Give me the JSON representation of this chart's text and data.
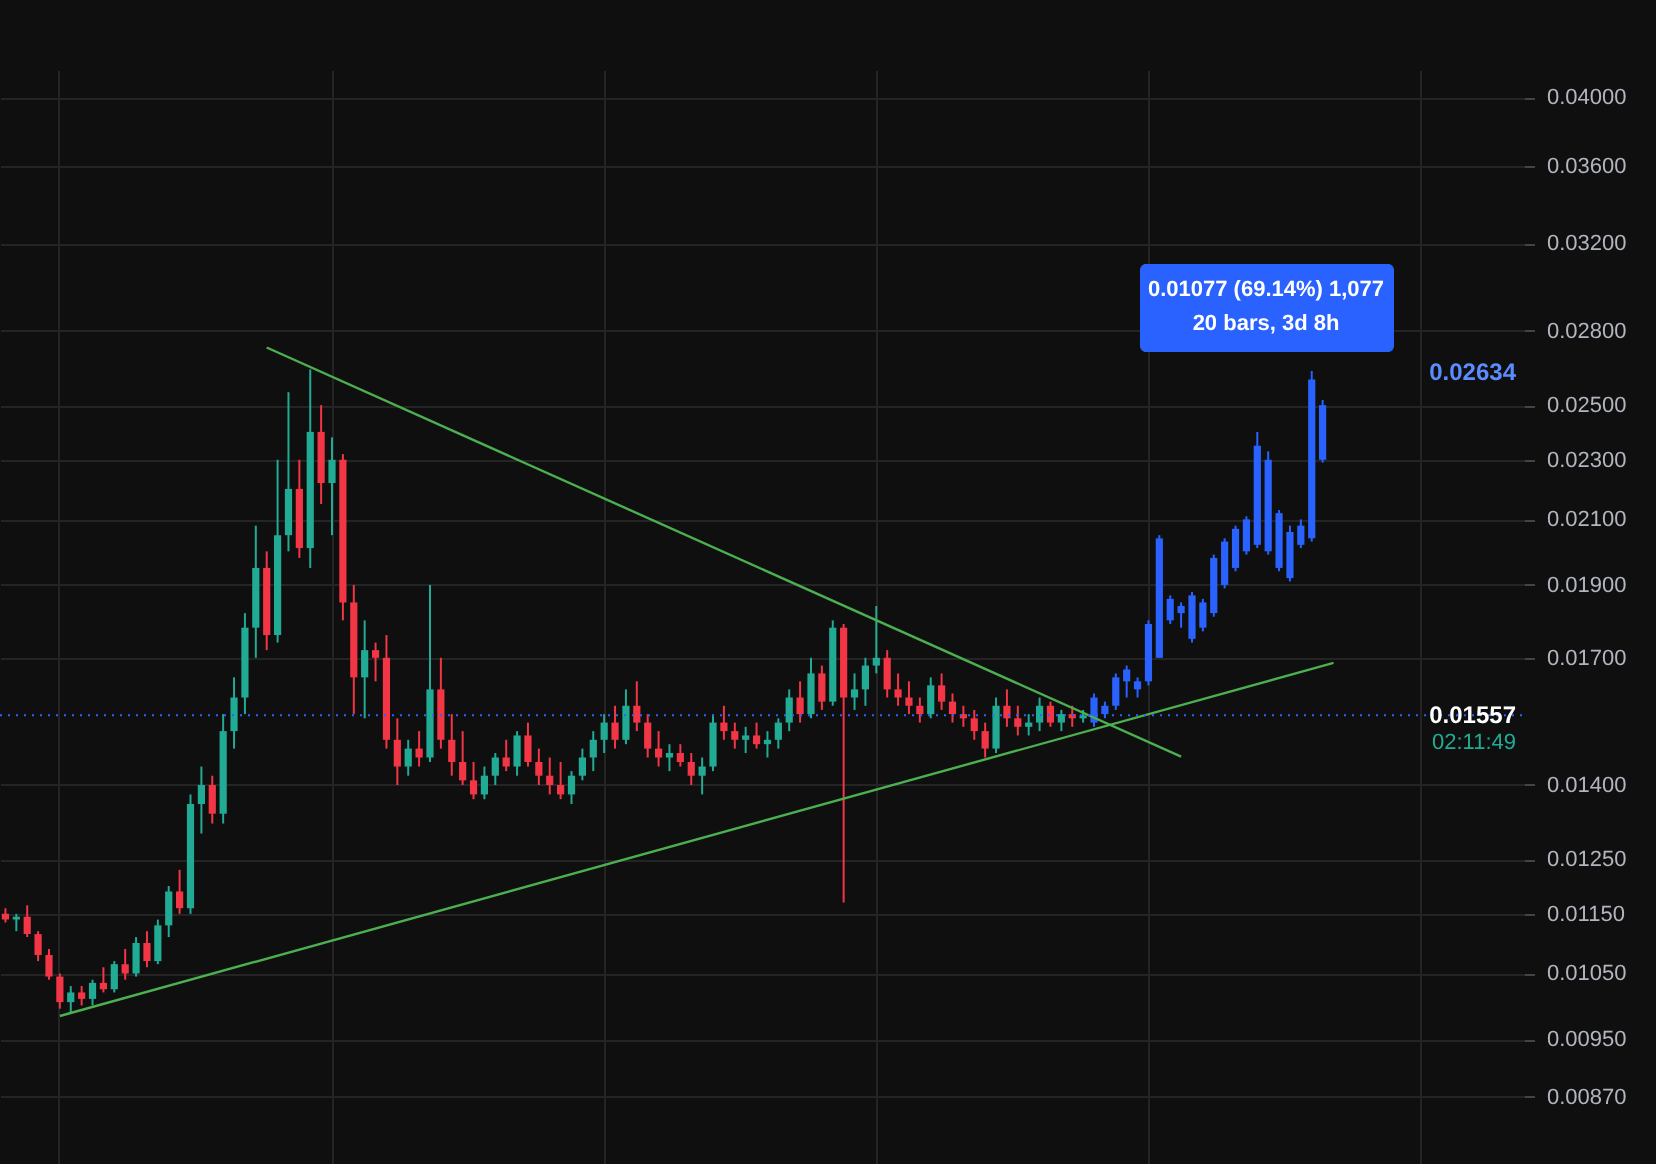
{
  "chart_data": {
    "type": "candlestick",
    "categories": [
      null,
      null,
      null,
      null,
      null,
      null,
      null,
      null,
      null,
      null,
      null,
      null,
      null,
      null,
      null,
      null,
      null,
      null,
      null,
      null,
      null,
      null,
      null,
      null,
      null,
      null,
      null,
      null,
      null,
      null,
      null,
      null,
      null,
      null,
      null,
      null,
      null,
      null,
      null,
      null,
      null,
      null,
      null,
      null,
      null,
      null,
      null,
      null,
      null,
      null,
      null,
      null,
      null,
      null,
      null,
      null,
      null,
      null,
      null,
      null,
      null,
      null,
      null,
      null,
      null,
      null,
      null,
      null,
      null,
      null,
      null,
      null,
      null,
      null,
      null,
      null,
      null,
      null,
      null,
      null,
      null,
      null,
      null,
      null,
      null,
      null,
      null,
      null,
      null,
      null,
      null,
      null,
      null,
      null,
      null,
      null,
      null,
      null,
      null,
      null,
      null,
      null,
      null,
      null,
      null,
      null,
      null,
      null,
      null,
      null,
      null,
      null,
      null,
      null,
      null,
      null,
      null,
      null,
      null,
      null,
      null,
      null,
      null,
      null,
      null,
      null,
      null,
      null,
      null,
      null,
      null,
      null,
      null,
      null,
      null,
      null,
      null,
      null,
      null,
      null
    ],
    "series": [
      {
        "type": "candlestick",
        "ohlc": [
          [
            0.0115,
            0.0116,
            0.01135,
            0.0114
          ],
          [
            0.0114,
            0.0115,
            0.0112,
            0.01145
          ],
          [
            0.01145,
            0.01165,
            0.0111,
            0.01115
          ],
          [
            0.01115,
            0.0112,
            0.0107,
            0.0108
          ],
          [
            0.0108,
            0.0109,
            0.0104,
            0.01045
          ],
          [
            0.01045,
            0.0105,
            0.00995,
            0.01005
          ],
          [
            0.01005,
            0.0103,
            0.0099,
            0.0102
          ],
          [
            0.0102,
            0.0103,
            0.01,
            0.0101
          ],
          [
            0.0101,
            0.0104,
            0.01,
            0.01035
          ],
          [
            0.01035,
            0.0106,
            0.0102,
            0.01025
          ],
          [
            0.01025,
            0.0107,
            0.0102,
            0.01065
          ],
          [
            0.01065,
            0.0109,
            0.0104,
            0.0105
          ],
          [
            0.0105,
            0.0111,
            0.01045,
            0.011
          ],
          [
            0.011,
            0.0112,
            0.0106,
            0.0107
          ],
          [
            0.0107,
            0.0114,
            0.01065,
            0.0113
          ],
          [
            0.0113,
            0.012,
            0.0111,
            0.0119
          ],
          [
            0.0119,
            0.0123,
            0.0115,
            0.0116
          ],
          [
            0.0116,
            0.0138,
            0.0115,
            0.0136
          ],
          [
            0.0136,
            0.0144,
            0.013,
            0.014
          ],
          [
            0.014,
            0.0142,
            0.0132,
            0.0134
          ],
          [
            0.0134,
            0.0156,
            0.0132,
            0.0152
          ],
          [
            0.0152,
            0.0165,
            0.0148,
            0.016
          ],
          [
            0.016,
            0.0182,
            0.0156,
            0.0178
          ],
          [
            0.0178,
            0.0208,
            0.017,
            0.0195
          ],
          [
            0.0195,
            0.02,
            0.0172,
            0.0176
          ],
          [
            0.0176,
            0.023,
            0.0174,
            0.0205
          ],
          [
            0.0205,
            0.0255,
            0.02,
            0.022
          ],
          [
            0.022,
            0.023,
            0.0198,
            0.0201
          ],
          [
            0.0201,
            0.0264,
            0.0195,
            0.024
          ],
          [
            0.024,
            0.025,
            0.0215,
            0.0222
          ],
          [
            0.0222,
            0.0238,
            0.0205,
            0.023
          ],
          [
            0.023,
            0.0232,
            0.018,
            0.0185
          ],
          [
            0.0185,
            0.019,
            0.0156,
            0.0165
          ],
          [
            0.0165,
            0.018,
            0.0155,
            0.0172
          ],
          [
            0.0172,
            0.0174,
            0.0164,
            0.017
          ],
          [
            0.017,
            0.0176,
            0.0148,
            0.015
          ],
          [
            0.015,
            0.0155,
            0.014,
            0.0144
          ],
          [
            0.0144,
            0.015,
            0.0142,
            0.0148
          ],
          [
            0.0148,
            0.0152,
            0.0144,
            0.0146
          ],
          [
            0.0146,
            0.019,
            0.0145,
            0.0162
          ],
          [
            0.0162,
            0.017,
            0.0148,
            0.015
          ],
          [
            0.015,
            0.0156,
            0.0142,
            0.0145
          ],
          [
            0.0145,
            0.0152,
            0.014,
            0.0141
          ],
          [
            0.0141,
            0.0145,
            0.0137,
            0.0138
          ],
          [
            0.0138,
            0.0144,
            0.0137,
            0.0142
          ],
          [
            0.0142,
            0.0147,
            0.014,
            0.0146
          ],
          [
            0.0146,
            0.015,
            0.0143,
            0.0144
          ],
          [
            0.0144,
            0.0152,
            0.0142,
            0.0151
          ],
          [
            0.0151,
            0.0154,
            0.0144,
            0.0145
          ],
          [
            0.0145,
            0.0148,
            0.014,
            0.0142
          ],
          [
            0.0142,
            0.0146,
            0.0138,
            0.014
          ],
          [
            0.014,
            0.0145,
            0.0137,
            0.0138
          ],
          [
            0.0138,
            0.0143,
            0.0136,
            0.0142
          ],
          [
            0.0142,
            0.0148,
            0.0141,
            0.0146
          ],
          [
            0.0146,
            0.0152,
            0.0143,
            0.015
          ],
          [
            0.015,
            0.0156,
            0.0147,
            0.0154
          ],
          [
            0.0154,
            0.0158,
            0.0148,
            0.015
          ],
          [
            0.015,
            0.0162,
            0.0149,
            0.0158
          ],
          [
            0.0158,
            0.0164,
            0.0152,
            0.0154
          ],
          [
            0.0154,
            0.0156,
            0.0146,
            0.0148
          ],
          [
            0.0148,
            0.0152,
            0.0144,
            0.0146
          ],
          [
            0.0146,
            0.0149,
            0.0143,
            0.0147
          ],
          [
            0.0147,
            0.0149,
            0.0144,
            0.0145
          ],
          [
            0.0145,
            0.0147,
            0.014,
            0.0142
          ],
          [
            0.0142,
            0.0146,
            0.0138,
            0.0144
          ],
          [
            0.0144,
            0.0156,
            0.0143,
            0.0154
          ],
          [
            0.0154,
            0.0158,
            0.015,
            0.0152
          ],
          [
            0.0152,
            0.0154,
            0.0148,
            0.015
          ],
          [
            0.015,
            0.0153,
            0.0147,
            0.0151
          ],
          [
            0.0151,
            0.0154,
            0.0148,
            0.0149
          ],
          [
            0.0149,
            0.0152,
            0.0146,
            0.015
          ],
          [
            0.015,
            0.0155,
            0.0148,
            0.0154
          ],
          [
            0.0154,
            0.0162,
            0.0152,
            0.016
          ],
          [
            0.016,
            0.0164,
            0.0154,
            0.0156
          ],
          [
            0.0156,
            0.017,
            0.0155,
            0.0166
          ],
          [
            0.0166,
            0.0168,
            0.0157,
            0.0159
          ],
          [
            0.0159,
            0.018,
            0.0158,
            0.0178
          ],
          [
            0.0178,
            0.0179,
            0.0117,
            0.016
          ],
          [
            0.016,
            0.0166,
            0.0157,
            0.0162
          ],
          [
            0.0162,
            0.017,
            0.0158,
            0.0168
          ],
          [
            0.0168,
            0.0184,
            0.0166,
            0.017
          ],
          [
            0.017,
            0.0172,
            0.016,
            0.0162
          ],
          [
            0.0162,
            0.0166,
            0.0158,
            0.016
          ],
          [
            0.016,
            0.0164,
            0.0156,
            0.0158
          ],
          [
            0.0158,
            0.016,
            0.0154,
            0.0156
          ],
          [
            0.0156,
            0.0165,
            0.0155,
            0.0163
          ],
          [
            0.0163,
            0.0166,
            0.0157,
            0.0159
          ],
          [
            0.0159,
            0.0161,
            0.0154,
            0.0156
          ],
          [
            0.0156,
            0.0158,
            0.0153,
            0.0155
          ],
          [
            0.0155,
            0.0157,
            0.015,
            0.0152
          ],
          [
            0.0152,
            0.0154,
            0.0146,
            0.0148
          ],
          [
            0.0148,
            0.016,
            0.0147,
            0.0158
          ],
          [
            0.0158,
            0.0162,
            0.0153,
            0.0155
          ],
          [
            0.0155,
            0.0158,
            0.0151,
            0.0153
          ],
          [
            0.0153,
            0.0156,
            0.0151,
            0.0154
          ],
          [
            0.0154,
            0.016,
            0.0152,
            0.0158
          ],
          [
            0.0158,
            0.0159,
            0.0153,
            0.0154
          ],
          [
            0.0154,
            0.0157,
            0.0152,
            0.0156
          ],
          [
            0.0156,
            0.0158,
            0.0153,
            0.0155
          ],
          [
            0.0155,
            0.0157,
            0.0154,
            0.01557
          ],
          null,
          null,
          null,
          null,
          null,
          null,
          null,
          null,
          null,
          null,
          null,
          null,
          null,
          null,
          null,
          null,
          null,
          null,
          null,
          null,
          null,
          null,
          null,
          null,
          null,
          null,
          null,
          null,
          null,
          null,
          null,
          null,
          null,
          null,
          null,
          null,
          null,
          null,
          null,
          null
        ],
        "colors": [
          "#f23645",
          "#22ab94",
          "#f23645",
          "#f23645",
          "#f23645",
          "#f23645",
          "#22ab94",
          "#f23645",
          "#22ab94",
          "#f23645",
          "#22ab94",
          "#f23645",
          "#22ab94",
          "#f23645",
          "#22ab94",
          "#22ab94",
          "#f23645",
          "#22ab94",
          "#22ab94",
          "#f23645",
          "#22ab94",
          "#22ab94",
          "#22ab94",
          "#22ab94",
          "#f23645",
          "#22ab94",
          "#22ab94",
          "#f23645",
          "#22ab94",
          "#f23645",
          "#22ab94",
          "#f23645",
          "#f23645",
          "#22ab94",
          "#f23645",
          "#f23645",
          "#f23645",
          "#22ab94",
          "#f23645",
          "#22ab94",
          "#f23645",
          "#f23645",
          "#f23645",
          "#f23645",
          "#22ab94",
          "#22ab94",
          "#f23645",
          "#22ab94",
          "#f23645",
          "#f23645",
          "#f23645",
          "#f23645",
          "#22ab94",
          "#22ab94",
          "#22ab94",
          "#22ab94",
          "#f23645",
          "#22ab94",
          "#f23645",
          "#f23645",
          "#f23645",
          "#22ab94",
          "#f23645",
          "#f23645",
          "#22ab94",
          "#22ab94",
          "#f23645",
          "#f23645",
          "#22ab94",
          "#f23645",
          "#22ab94",
          "#22ab94",
          "#22ab94",
          "#f23645",
          "#22ab94",
          "#f23645",
          "#22ab94",
          "#f23645",
          "#22ab94",
          "#22ab94",
          "#22ab94",
          "#f23645",
          "#f23645",
          "#f23645",
          "#f23645",
          "#22ab94",
          "#f23645",
          "#f23645",
          "#f23645",
          "#f23645",
          "#f23645",
          "#22ab94",
          "#f23645",
          "#f23645",
          "#22ab94",
          "#22ab94",
          "#f23645",
          "#22ab94",
          "#f23645",
          "#22ab94",
          null,
          null,
          null,
          null,
          null,
          null,
          null,
          null,
          null,
          null,
          null,
          null,
          null,
          null,
          null,
          null,
          null,
          null,
          null,
          null,
          null,
          null,
          null,
          null,
          null,
          null,
          null,
          null,
          null,
          null,
          null,
          null,
          null,
          null,
          null,
          null,
          null,
          null,
          null,
          null
        ]
      },
      {
        "type": "candlestick",
        "color": "#2962ff",
        "ohlc": [
          null,
          null,
          null,
          null,
          null,
          null,
          null,
          null,
          null,
          null,
          null,
          null,
          null,
          null,
          null,
          null,
          null,
          null,
          null,
          null,
          null,
          null,
          null,
          null,
          null,
          null,
          null,
          null,
          null,
          null,
          null,
          null,
          null,
          null,
          null,
          null,
          null,
          null,
          null,
          null,
          null,
          null,
          null,
          null,
          null,
          null,
          null,
          null,
          null,
          null,
          null,
          null,
          null,
          null,
          null,
          null,
          null,
          null,
          null,
          null,
          null,
          null,
          null,
          null,
          null,
          null,
          null,
          null,
          null,
          null,
          null,
          null,
          null,
          null,
          null,
          null,
          null,
          null,
          null,
          null,
          null,
          null,
          null,
          null,
          null,
          null,
          null,
          null,
          null,
          null,
          null,
          null,
          null,
          null,
          null,
          null,
          null,
          null,
          null,
          null,
          [
            0.0154,
            0.0161,
            0.0153,
            0.016
          ],
          [
            0.0156,
            0.0159,
            0.0155,
            0.0158
          ],
          [
            0.0158,
            0.0166,
            0.0157,
            0.0165
          ],
          [
            0.0164,
            0.0168,
            0.016,
            0.0167
          ],
          [
            0.0162,
            0.0165,
            0.016,
            0.0164
          ],
          [
            0.0164,
            0.018,
            0.0163,
            0.0179
          ],
          [
            0.017,
            0.0205,
            0.017,
            0.0204
          ],
          [
            0.018,
            0.0187,
            0.0179,
            0.0186
          ],
          [
            0.0182,
            0.0185,
            0.0178,
            0.0184
          ],
          [
            0.0175,
            0.0188,
            0.0174,
            0.0187
          ],
          [
            0.0178,
            0.0186,
            0.0177,
            0.0185
          ],
          [
            0.0182,
            0.0199,
            0.0181,
            0.0198
          ],
          [
            0.019,
            0.0204,
            0.0189,
            0.0203
          ],
          [
            0.0195,
            0.0208,
            0.0194,
            0.0207
          ],
          [
            0.02,
            0.0211,
            0.0199,
            0.021
          ],
          [
            0.0202,
            0.024,
            0.0201,
            0.0235
          ],
          [
            0.02,
            0.0233,
            0.0199,
            0.023
          ],
          [
            0.0195,
            0.0213,
            0.0194,
            0.0212
          ],
          [
            0.0192,
            0.0208,
            0.0191,
            0.0206
          ],
          [
            0.0202,
            0.021,
            0.0201,
            0.0208
          ],
          [
            0.0204,
            0.02634,
            0.0203,
            0.026
          ],
          [
            0.023,
            0.0252,
            0.0229,
            0.025
          ],
          null,
          null,
          null,
          null,
          null,
          null,
          null,
          null,
          null,
          null,
          null,
          null,
          null,
          null,
          null,
          null,
          null,
          null
        ]
      },
      {
        "type": "line",
        "color": "#4caf50",
        "values": [
          null,
          null,
          null,
          null,
          null,
          null,
          null,
          null,
          null,
          null,
          null,
          null,
          null,
          null,
          null,
          null,
          null,
          null,
          null,
          null,
          null,
          null,
          null,
          null,
          0.0273,
          null,
          null,
          null,
          null,
          null,
          null,
          null,
          null,
          null,
          null,
          null,
          null,
          null,
          null,
          null,
          null,
          null,
          null,
          null,
          null,
          null,
          null,
          null,
          null,
          null,
          null,
          null,
          null,
          null,
          null,
          null,
          null,
          null,
          null,
          null,
          null,
          null,
          null,
          null,
          null,
          null,
          null,
          null,
          null,
          null,
          null,
          null,
          null,
          null,
          null,
          null,
          null,
          null,
          null,
          null,
          null,
          null,
          null,
          null,
          null,
          null,
          null,
          null,
          null,
          null,
          null,
          null,
          null,
          null,
          null,
          null,
          null,
          null,
          null,
          null,
          null,
          null,
          null,
          null,
          null,
          null,
          null,
          null,
          0.01462,
          null,
          null,
          null,
          null,
          null,
          null,
          null,
          null,
          null,
          null,
          null,
          null,
          null,
          null,
          null,
          null,
          null,
          null,
          null,
          null,
          null,
          null,
          null,
          null,
          null,
          null,
          null,
          null,
          null,
          null,
          null
        ]
      },
      {
        "type": "line",
        "color": "#4caf50",
        "values": [
          null,
          null,
          null,
          null,
          null,
          0.00984,
          null,
          null,
          null,
          null,
          null,
          null,
          null,
          null,
          null,
          null,
          null,
          null,
          null,
          null,
          null,
          null,
          null,
          null,
          null,
          null,
          null,
          null,
          null,
          null,
          null,
          null,
          null,
          null,
          null,
          null,
          null,
          null,
          null,
          null,
          null,
          null,
          null,
          null,
          null,
          null,
          null,
          null,
          null,
          null,
          null,
          null,
          null,
          null,
          null,
          null,
          null,
          null,
          null,
          null,
          null,
          null,
          null,
          null,
          null,
          null,
          null,
          null,
          null,
          null,
          null,
          null,
          null,
          null,
          null,
          null,
          null,
          null,
          null,
          null,
          null,
          null,
          null,
          null,
          null,
          null,
          null,
          null,
          null,
          null,
          null,
          null,
          null,
          null,
          null,
          null,
          null,
          null,
          null,
          null,
          null,
          null,
          null,
          null,
          null,
          null,
          null,
          null,
          null,
          null,
          null,
          null,
          null,
          null,
          null,
          null,
          null,
          null,
          null,
          null,
          null,
          null,
          0.01687,
          null,
          null,
          null,
          null,
          null,
          null,
          null,
          null,
          null,
          null,
          null,
          null,
          null,
          null,
          null,
          null,
          null
        ]
      }
    ],
    "ylim": [
      0.00785,
      0.0417
    ],
    "yticks": [
      {
        "value": 0.04,
        "label": "0.04000"
      },
      {
        "value": 0.036,
        "label": "0.03600"
      },
      {
        "value": 0.032,
        "label": "0.03200"
      },
      {
        "value": 0.028,
        "label": "0.02800"
      },
      {
        "value": 0.025,
        "label": "0.02500"
      },
      {
        "value": 0.023,
        "label": "0.02300"
      },
      {
        "value": 0.021,
        "label": "0.02100"
      },
      {
        "value": 0.019,
        "label": "0.01900"
      },
      {
        "value": 0.017,
        "label": "0.01700"
      },
      {
        "value": 0.014,
        "label": "0.01400"
      },
      {
        "value": 0.0125,
        "label": "0.01250"
      },
      {
        "value": 0.0115,
        "label": "0.01150"
      },
      {
        "value": 0.0105,
        "label": "0.01050"
      },
      {
        "value": 0.0095,
        "label": "0.00950"
      },
      {
        "value": 0.0087,
        "label": "0.00870"
      }
    ],
    "log": true,
    "grid": true,
    "tick_labels": "y",
    "ref_lines": [
      {
        "axis": "y",
        "value": 0.01557,
        "label": "0.01557",
        "color": "#2962ff",
        "line_style": "dotted"
      }
    ],
    "annotations": [
      "0.01077 (69.14%) 1,077",
      "20 bars, 3d 8h",
      "0.02634",
      "02:11:49"
    ]
  }
}
